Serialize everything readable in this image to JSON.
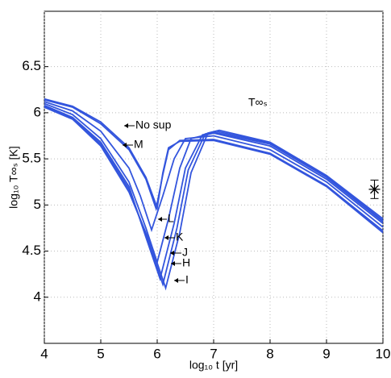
{
  "chart_data": {
    "type": "line",
    "xlabel": "log₁₀ t [yr]",
    "ylabel": "log₁₀ T∞ₛ [K]",
    "xlim": [
      4,
      10
    ],
    "ylim": [
      3.5,
      7.1
    ],
    "xticks": [
      4,
      5,
      6,
      7,
      8,
      9,
      10
    ],
    "yticks": [
      4,
      4.5,
      5,
      5.5,
      6,
      6.5
    ],
    "grid": true,
    "series": [
      {
        "name": "No sup",
        "color": "#3355dd",
        "x": [
          4,
          4.5,
          5,
          5.5,
          5.8,
          6.0,
          6.1,
          6.2,
          6.4,
          7,
          8,
          9,
          10
        ],
        "values": [
          6.15,
          6.07,
          5.9,
          5.62,
          5.3,
          4.97,
          5.35,
          5.62,
          5.69,
          5.7,
          5.55,
          5.2,
          4.7
        ]
      },
      {
        "name": "M",
        "color": "#3355dd",
        "x": [
          4,
          4.5,
          5,
          5.5,
          5.8,
          5.98,
          6.1,
          6.2,
          6.4,
          7,
          8,
          9,
          10
        ],
        "values": [
          6.14,
          6.06,
          5.88,
          5.6,
          5.28,
          4.96,
          5.33,
          5.6,
          5.7,
          5.71,
          5.56,
          5.21,
          4.72
        ]
      },
      {
        "name": "L",
        "color": "#3355dd",
        "x": [
          4,
          4.5,
          5,
          5.5,
          5.7,
          5.9,
          6.1,
          6.3,
          6.5,
          7,
          8,
          9,
          10
        ],
        "values": [
          6.12,
          6.02,
          5.8,
          5.4,
          5.1,
          4.73,
          5.1,
          5.5,
          5.72,
          5.75,
          5.6,
          5.25,
          4.76
        ]
      },
      {
        "name": "K",
        "color": "#3355dd",
        "x": [
          4,
          4.5,
          5,
          5.5,
          5.8,
          6.0,
          6.2,
          6.4,
          6.6,
          7,
          8,
          9,
          10
        ],
        "values": [
          6.1,
          5.98,
          5.72,
          5.25,
          4.75,
          4.38,
          4.85,
          5.4,
          5.72,
          5.78,
          5.64,
          5.28,
          4.8
        ]
      },
      {
        "name": "J",
        "color": "#3355dd",
        "x": [
          4,
          4.5,
          5,
          5.5,
          5.8,
          6.05,
          6.3,
          6.5,
          6.8,
          7,
          8,
          9,
          10
        ],
        "values": [
          6.08,
          5.95,
          5.68,
          5.2,
          4.65,
          4.2,
          4.8,
          5.4,
          5.76,
          5.79,
          5.66,
          5.3,
          4.82
        ]
      },
      {
        "name": "H",
        "color": "#3355dd",
        "x": [
          4,
          4.5,
          5,
          5.5,
          5.85,
          6.1,
          6.35,
          6.55,
          6.85,
          7.05,
          8,
          9,
          10
        ],
        "values": [
          6.07,
          5.94,
          5.66,
          5.17,
          4.6,
          4.14,
          4.75,
          5.38,
          5.77,
          5.8,
          5.67,
          5.31,
          4.83
        ]
      },
      {
        "name": "I",
        "color": "#3355dd",
        "x": [
          4,
          4.5,
          5,
          5.5,
          5.9,
          6.15,
          6.4,
          6.6,
          6.9,
          7.1,
          8,
          9,
          10
        ],
        "values": [
          6.06,
          5.93,
          5.64,
          5.14,
          4.55,
          4.1,
          4.7,
          5.35,
          5.78,
          5.81,
          5.68,
          5.32,
          4.85
        ]
      }
    ],
    "annotation": "T∞ₛ",
    "observation": {
      "x": 9.85,
      "y": 5.17,
      "error": 0.1
    }
  }
}
